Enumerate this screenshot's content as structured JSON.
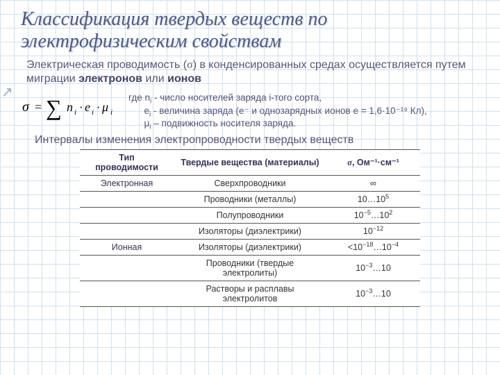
{
  "title": "Классификация твердых веществ по электрофизическим свойствам",
  "para_prefix": "Электрическая проводимость (",
  "para_sigma": "σ",
  "para_mid": ") в конденсированных средах осуществляется путем миграции ",
  "para_bold1": "электронов",
  "para_or": " или ",
  "para_bold2": "ионов",
  "legend_where": "где n",
  "legend_l1_rest": " - число носителей заряда i-того сорта,",
  "legend_l2_pre": "e",
  "legend_l2_rest": " - величина заряда (e⁻ и однозарядных ионов e = 1,6·10⁻¹⁹ Кл),",
  "legend_l3_pre": "μ",
  "legend_l3_rest": " – подвижность носителя заряда.",
  "subtitle": "Интервалы изменения электропроводности твердых веществ",
  "table": {
    "header": {
      "c1": "Тип проводимости",
      "c2": "Твердые вещества (материалы)",
      "c3_sym": "σ",
      "c3_unit": ", Ом⁻¹·см⁻¹"
    },
    "rows": [
      {
        "type": "Электронная",
        "material": "Сверхпроводники",
        "sigma_html": "∞"
      },
      {
        "type": "",
        "material": "Проводники (металлы)",
        "sigma_html": "10…10<sup>5</sup>"
      },
      {
        "type": "",
        "material": "Полупроводники",
        "sigma_html": "10<sup>−5</sup>…10<sup>2</sup>"
      },
      {
        "type": "",
        "material": "Изоляторы (диэлектрики)",
        "sigma_html": "10<sup>−12</sup>"
      },
      {
        "type": "Ионная",
        "material": "Изоляторы (диэлектрики)",
        "sigma_html": "&lt;10<sup>−18</sup>…10<sup>−4</sup>"
      },
      {
        "type": "",
        "material": "Проводники (твердые электролиты)",
        "sigma_html": "10<sup>−3</sup>…10"
      },
      {
        "type": "",
        "material": "Растворы и расплавы электролитов",
        "sigma_html": "10<sup>−3</sup>…10"
      }
    ]
  },
  "colors": {
    "title": "#4a5a8a",
    "text": "#555577",
    "grid": "#d0e0f0"
  }
}
